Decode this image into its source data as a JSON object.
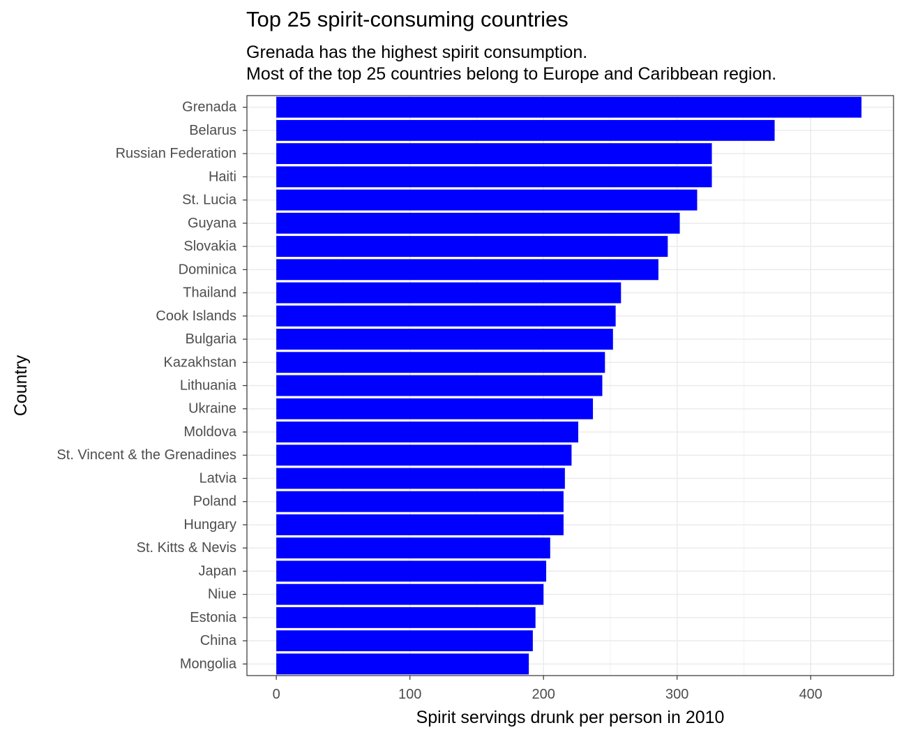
{
  "chart_data": {
    "type": "bar",
    "orientation": "horizontal",
    "title": "Top 25 spirit-consuming countries",
    "subtitle": [
      "Grenada has the highest spirit consumption.",
      "Most of the top 25 countries belong to Europe and Caribbean region."
    ],
    "xlabel": "Spirit servings drunk per person in 2010",
    "ylabel": "Country",
    "xlim": [
      -22,
      462
    ],
    "xticks": [
      0,
      100,
      200,
      300,
      400
    ],
    "grid": true,
    "bar_color": "#0000ff",
    "categories": [
      "Grenada",
      "Belarus",
      "Russian Federation",
      "Haiti",
      "St. Lucia",
      "Guyana",
      "Slovakia",
      "Dominica",
      "Thailand",
      "Cook Islands",
      "Bulgaria",
      "Kazakhstan",
      "Lithuania",
      "Ukraine",
      "Moldova",
      "St. Vincent & the Grenadines",
      "Latvia",
      "Poland",
      "Hungary",
      "St. Kitts & Nevis",
      "Japan",
      "Niue",
      "Estonia",
      "China",
      "Mongolia"
    ],
    "values": [
      438,
      373,
      326,
      326,
      315,
      302,
      293,
      286,
      258,
      254,
      252,
      246,
      244,
      237,
      226,
      221,
      216,
      215,
      215,
      205,
      202,
      200,
      194,
      192,
      189
    ]
  }
}
